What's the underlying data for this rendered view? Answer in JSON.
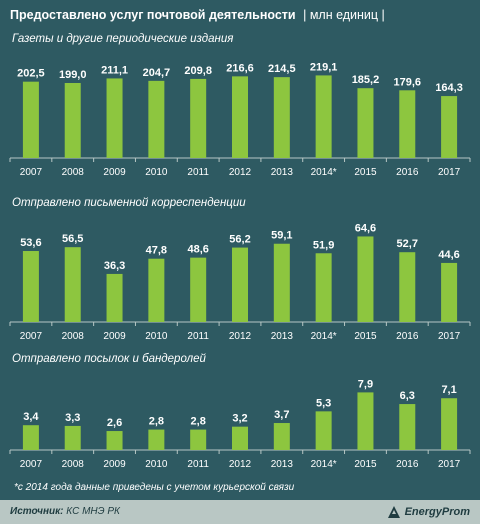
{
  "header": {
    "title": "Предоставлено услуг почтовой деятельности",
    "unit": "| млн единиц |"
  },
  "colors": {
    "background": "#2e5a62",
    "bar": "#8dc63f",
    "axis": "#b7c7c5",
    "text": "#ffffff"
  },
  "chart_data": [
    {
      "type": "bar",
      "title": "Газеты и другие периодические издания",
      "categories": [
        "2007",
        "2008",
        "2009",
        "2010",
        "2011",
        "2012",
        "2013",
        "2014*",
        "2015",
        "2016",
        "2017"
      ],
      "values": [
        202.5,
        199.0,
        211.1,
        204.7,
        209.8,
        216.6,
        214.5,
        219.1,
        185.2,
        179.6,
        164.3
      ],
      "labels": [
        "202,5",
        "199,0",
        "211,1",
        "204,7",
        "209,8",
        "216,6",
        "214,5",
        "219,1",
        "185,2",
        "179,6",
        "164,3"
      ],
      "ylim": [
        0,
        260
      ]
    },
    {
      "type": "bar",
      "title": "Отправлено письменной корреспенденции",
      "categories": [
        "2007",
        "2008",
        "2009",
        "2010",
        "2011",
        "2012",
        "2013",
        "2014*",
        "2015",
        "2016",
        "2017"
      ],
      "values": [
        53.6,
        56.5,
        36.3,
        47.8,
        48.6,
        56.2,
        59.1,
        51.9,
        64.6,
        52.7,
        44.6
      ],
      "labels": [
        "53,6",
        "56,5",
        "36,3",
        "47,8",
        "48,6",
        "56,2",
        "59,1",
        "51,9",
        "64,6",
        "52,7",
        "44,6"
      ],
      "ylim": [
        0,
        74
      ]
    },
    {
      "type": "bar",
      "title": "Отправлено посылок и бандеролей",
      "categories": [
        "2007",
        "2008",
        "2009",
        "2010",
        "2011",
        "2012",
        "2013",
        "2014*",
        "2015",
        "2016",
        "2017"
      ],
      "values": [
        3.4,
        3.3,
        2.6,
        2.8,
        2.8,
        3.2,
        3.7,
        5.3,
        7.9,
        6.3,
        7.1
      ],
      "labels": [
        "3,4",
        "3,3",
        "2,6",
        "2,8",
        "2,8",
        "3,2",
        "3,7",
        "5,3",
        "7,9",
        "6,3",
        "7,1"
      ],
      "ylim": [
        0,
        9.6
      ]
    }
  ],
  "footnote": "*с 2014 года данные приведены с учетом курьерской связи",
  "footer": {
    "source_label": "Источник:",
    "source_value": "КС МНЭ РК",
    "logo_text": "EnergyProm"
  }
}
